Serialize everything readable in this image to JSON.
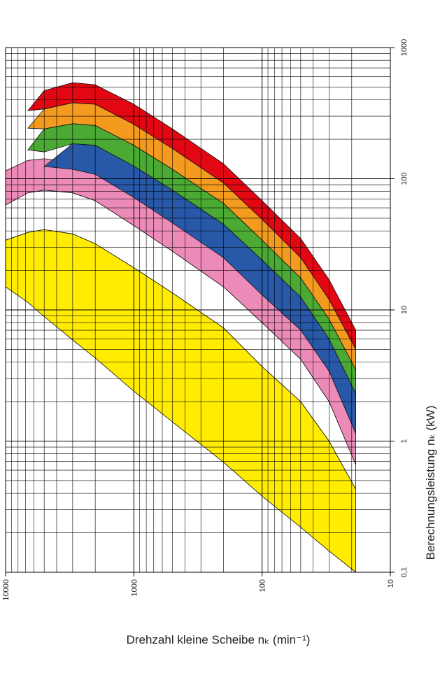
{
  "chart_data": {
    "type": "band",
    "x_label": "Drehzahl kleine Scheibe nₖ (min⁻¹)",
    "y_label": "Berechnungsleistung nₖ (kW)",
    "xscale": "log",
    "yscale": "log",
    "grid": true,
    "xlim": [
      10000,
      10
    ],
    "xticks": [
      10000,
      1000,
      100,
      10
    ],
    "ylim": [
      0.1,
      1000
    ],
    "yticks": [
      {
        "value": 0.1,
        "label": "0,1"
      },
      1,
      10,
      100,
      1000
    ],
    "x": [
      10000,
      6700,
      5000,
      3000,
      2000,
      1000,
      500,
      200,
      100,
      50,
      30,
      18.6
    ],
    "series": [
      {
        "color": "#ffec00",
        "lower": [
          15,
          11.4,
          8.9,
          5.9,
          4.3,
          2.4,
          1.4,
          0.69,
          0.38,
          0.22,
          0.145,
          0.1
        ],
        "upper": [
          34,
          39,
          41,
          38,
          32,
          21,
          13.5,
          7.3,
          3.7,
          2.0,
          1.0,
          0.43
        ]
      },
      {
        "color": "#ffffff",
        "lower": [
          34,
          39,
          41,
          38,
          32,
          21,
          13.5,
          7.3,
          3.7,
          2.0,
          1.0,
          0.43
        ],
        "upper": [
          63,
          78,
          82,
          78,
          68,
          44,
          28,
          15,
          8,
          4.2,
          2.0,
          0.66
        ]
      },
      {
        "color": "#ec8ab8",
        "lower": [
          63,
          78,
          82,
          78,
          68,
          44,
          28,
          15,
          8,
          4.2,
          2.0,
          0.66
        ],
        "upper": [
          115,
          138,
          142,
          135,
          120,
          78,
          50,
          27,
          14,
          7.5,
          3.6,
          1.14
        ]
      },
      {
        "color": "#2858a8",
        "lower": [
          null,
          null,
          124,
          118,
          108,
          72,
          46,
          25,
          13,
          7,
          3.4,
          1.14
        ],
        "upper": [
          null,
          null,
          124,
          185,
          180,
          125,
          82,
          45,
          24,
          12.5,
          6,
          2.3
        ]
      },
      {
        "color": "#4aaa34",
        "lower": [
          null,
          166,
          160,
          185,
          180,
          125,
          82,
          45,
          24,
          12.5,
          6,
          2.3
        ],
        "upper": [
          null,
          166,
          240,
          263,
          255,
          180,
          118,
          65,
          34,
          17.5,
          8.5,
          3.5
        ]
      },
      {
        "color": "#f49a1e",
        "lower": [
          null,
          243,
          240,
          263,
          255,
          180,
          118,
          65,
          34,
          17.5,
          8.5,
          3.5
        ],
        "upper": [
          null,
          243,
          340,
          380,
          370,
          260,
          170,
          93,
          49,
          25,
          12,
          5
        ]
      },
      {
        "color": "#e30613",
        "lower": [
          null,
          330,
          340,
          380,
          370,
          260,
          170,
          93,
          49,
          25,
          12,
          5
        ],
        "upper": [
          null,
          330,
          470,
          540,
          520,
          370,
          240,
          130,
          68,
          35,
          17,
          7
        ]
      }
    ]
  }
}
